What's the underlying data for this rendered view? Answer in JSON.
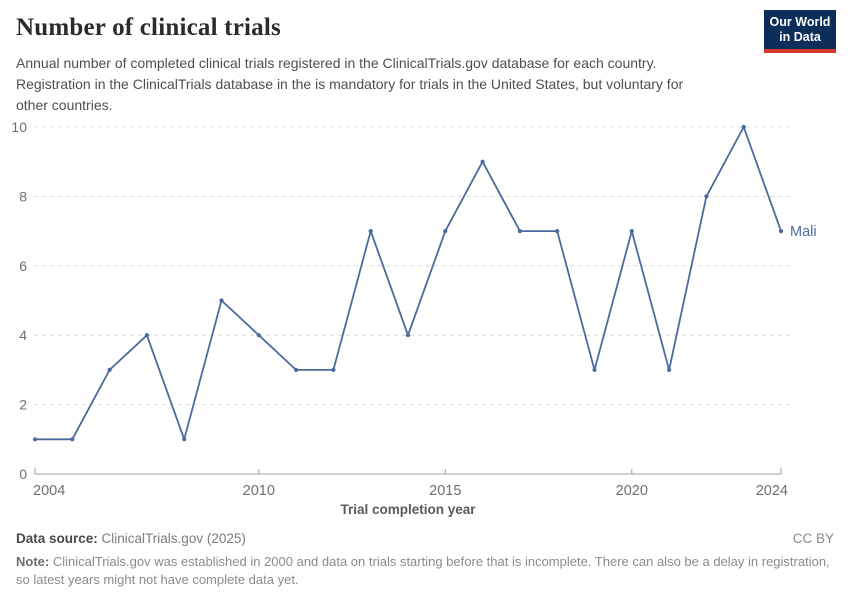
{
  "header": {
    "title": "Number of clinical trials",
    "subtitle_lines": [
      "Annual number of completed clinical trials registered in the ClinicalTrials.gov database for each country.",
      "Registration in the ClinicalTrials database in the is mandatory for trials in the United States, but voluntary for",
      "other countries."
    ],
    "logo": {
      "line1": "Our World",
      "line2": "in Data",
      "bg_color": "#0d2e5b",
      "bar_color": "#d7382b"
    }
  },
  "chart_data": {
    "type": "line",
    "title": "Number of clinical trials",
    "xlabel": "Trial completion year",
    "ylabel": "",
    "x": [
      2004,
      2005,
      2006,
      2007,
      2008,
      2009,
      2010,
      2011,
      2012,
      2013,
      2014,
      2015,
      2016,
      2017,
      2018,
      2019,
      2020,
      2021,
      2022,
      2023,
      2024
    ],
    "series": [
      {
        "name": "Mali",
        "color": "#4c6a9c",
        "values": [
          1,
          1,
          3,
          4,
          1,
          5,
          4,
          3,
          3,
          7,
          4,
          7,
          9,
          7,
          7,
          3,
          7,
          3,
          8,
          10,
          7
        ]
      }
    ],
    "xlim": [
      2004,
      2024
    ],
    "ylim": [
      0,
      10
    ],
    "yticks": [
      0,
      2,
      4,
      6,
      8,
      10
    ],
    "xticks": [
      2004,
      2010,
      2015,
      2020,
      2024
    ],
    "grid": true,
    "grid_color": "#dcdcdc",
    "axis_color": "#a0a0a0",
    "tick_label_color": "#6e6e6e",
    "axis_title_color": "#5a5a5a",
    "legend": "end-of-line entity label"
  },
  "footer": {
    "source_label": "Data source:",
    "source_text": "ClinicalTrials.gov (2025)",
    "license": "CC BY",
    "note_label": "Note:",
    "note_text": "ClinicalTrials.gov was established in 2000 and data on trials starting before that is incomplete. There can also be a delay in registration, so latest years might not have complete data yet."
  }
}
